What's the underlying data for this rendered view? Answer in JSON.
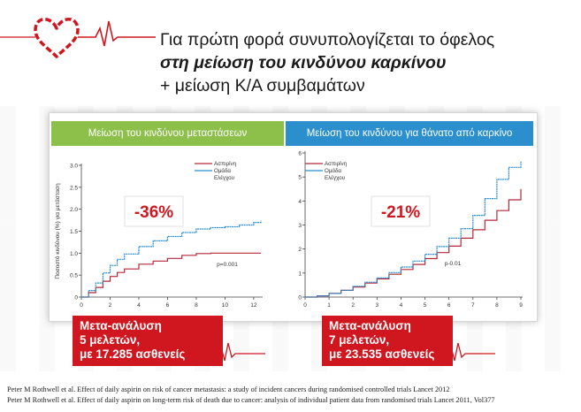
{
  "header": {
    "line1": "Για πρώτη φορά συνυπολογίζεται το όφελος",
    "line2": "στη μείωση του κινδύνου καρκίνου",
    "line3": "+ μείωση Κ/Α συμβαμάτων"
  },
  "colors": {
    "aspirin": "#b5283a",
    "control": "#2a8fcc",
    "accent": "#d0161e",
    "green": "#8cc04a",
    "blue": "#2a8fcc"
  },
  "icons": {
    "logo": "heart-ecg-icon"
  },
  "chart_data": [
    {
      "type": "line",
      "title": "Μείωση του κινδύνου μεταστάσεων",
      "ylabel": "Ποσοστό κινδύνου (%) για μετάσταση",
      "xlim": [
        0,
        12.5
      ],
      "ylim": [
        0,
        3.0
      ],
      "x_ticks": [
        "0",
        "2",
        "4",
        "6",
        "8",
        "10",
        "12"
      ],
      "y_ticks": [
        "0",
        "0.5",
        "1.0",
        "1.5",
        "2.0",
        "2.5",
        "3.0"
      ],
      "legend": [
        "Ασπιρίνη",
        "Ομάδα",
        "Ελέγχου"
      ],
      "series": [
        {
          "name": "Ασπιρίνη",
          "color": "#b5283a",
          "x": [
            0,
            0.5,
            1,
            1.5,
            2,
            2.5,
            3,
            4,
            5,
            6,
            7,
            8,
            9,
            10,
            11,
            12,
            12.5
          ],
          "y": [
            0,
            0.1,
            0.22,
            0.36,
            0.47,
            0.56,
            0.64,
            0.75,
            0.82,
            0.88,
            0.95,
            0.99,
            1.0,
            1.0,
            1.0,
            1.0,
            1.0
          ]
        },
        {
          "name": "Ομάδα Ελέγχου",
          "color": "#2a8fcc",
          "x": [
            0,
            0.5,
            1,
            1.5,
            2,
            2.5,
            3,
            4,
            5,
            6,
            7,
            8,
            9,
            10,
            11,
            12,
            12.5
          ],
          "y": [
            0,
            0.15,
            0.32,
            0.55,
            0.72,
            0.86,
            0.98,
            1.15,
            1.28,
            1.38,
            1.47,
            1.55,
            1.58,
            1.6,
            1.64,
            1.7,
            1.74
          ]
        }
      ],
      "pvalue": "p=0.001",
      "reduction": "-36%"
    },
    {
      "type": "line",
      "title": "Μείωση του κινδύνου για θάνατο από καρκίνο",
      "xlim": [
        0,
        9
      ],
      "ylim": [
        0,
        6
      ],
      "x_ticks": [
        "0",
        "1",
        "2",
        "3",
        "4",
        "5",
        "6",
        "7",
        "8",
        "9"
      ],
      "y_ticks": [
        "0",
        "1",
        "2",
        "3",
        "4",
        "5",
        "6"
      ],
      "legend": [
        "Ασπιρίνη",
        "Ομάδα",
        "Ελέγχου"
      ],
      "series": [
        {
          "name": "Ασπιρίνη",
          "color": "#b5283a",
          "x": [
            0,
            0.5,
            1,
            1.5,
            2,
            2.5,
            3,
            3.5,
            4,
            4.5,
            5,
            5.5,
            6,
            6.5,
            7,
            7.5,
            8,
            8.5,
            9
          ],
          "y": [
            0,
            0.05,
            0.15,
            0.28,
            0.42,
            0.58,
            0.76,
            0.95,
            1.15,
            1.36,
            1.6,
            1.85,
            2.12,
            2.45,
            2.8,
            3.2,
            3.6,
            4.05,
            4.5
          ]
        },
        {
          "name": "Ομάδα Ελέγχου",
          "color": "#2a8fcc",
          "x": [
            0,
            0.5,
            1,
            1.5,
            2,
            2.5,
            3,
            3.5,
            4,
            4.5,
            5,
            5.5,
            6,
            6.5,
            7,
            7.5,
            8,
            8.5,
            9
          ],
          "y": [
            0,
            0.05,
            0.15,
            0.28,
            0.45,
            0.62,
            0.8,
            1.02,
            1.25,
            1.5,
            1.78,
            2.1,
            2.45,
            2.85,
            3.4,
            4.1,
            4.9,
            5.4,
            5.65
          ]
        }
      ],
      "pvalue": "p-0.01",
      "reduction": "-21%"
    }
  ],
  "callouts": {
    "left": {
      "line1": "Μετα-ανάλυση",
      "line2": "5 μελετών,",
      "line3": "με 17.285 ασθενείς"
    },
    "right": {
      "line1": "Μετα-ανάλυση",
      "line2": "7 μελετών,",
      "line3": "με 23.535 ασθενείς"
    }
  },
  "references": [
    "Peter M Rothwell et al. Effect of daily aspirin on risk of cancer metastasis: a study of incident cancers during randomised controlled trials Lancet 2012",
    "Peter M Rothwell et al. Effect of daily aspirin on long-term risk of death due to cancer: analysis of individual patient data from randomised trials Lancet 2011, Vol377"
  ]
}
